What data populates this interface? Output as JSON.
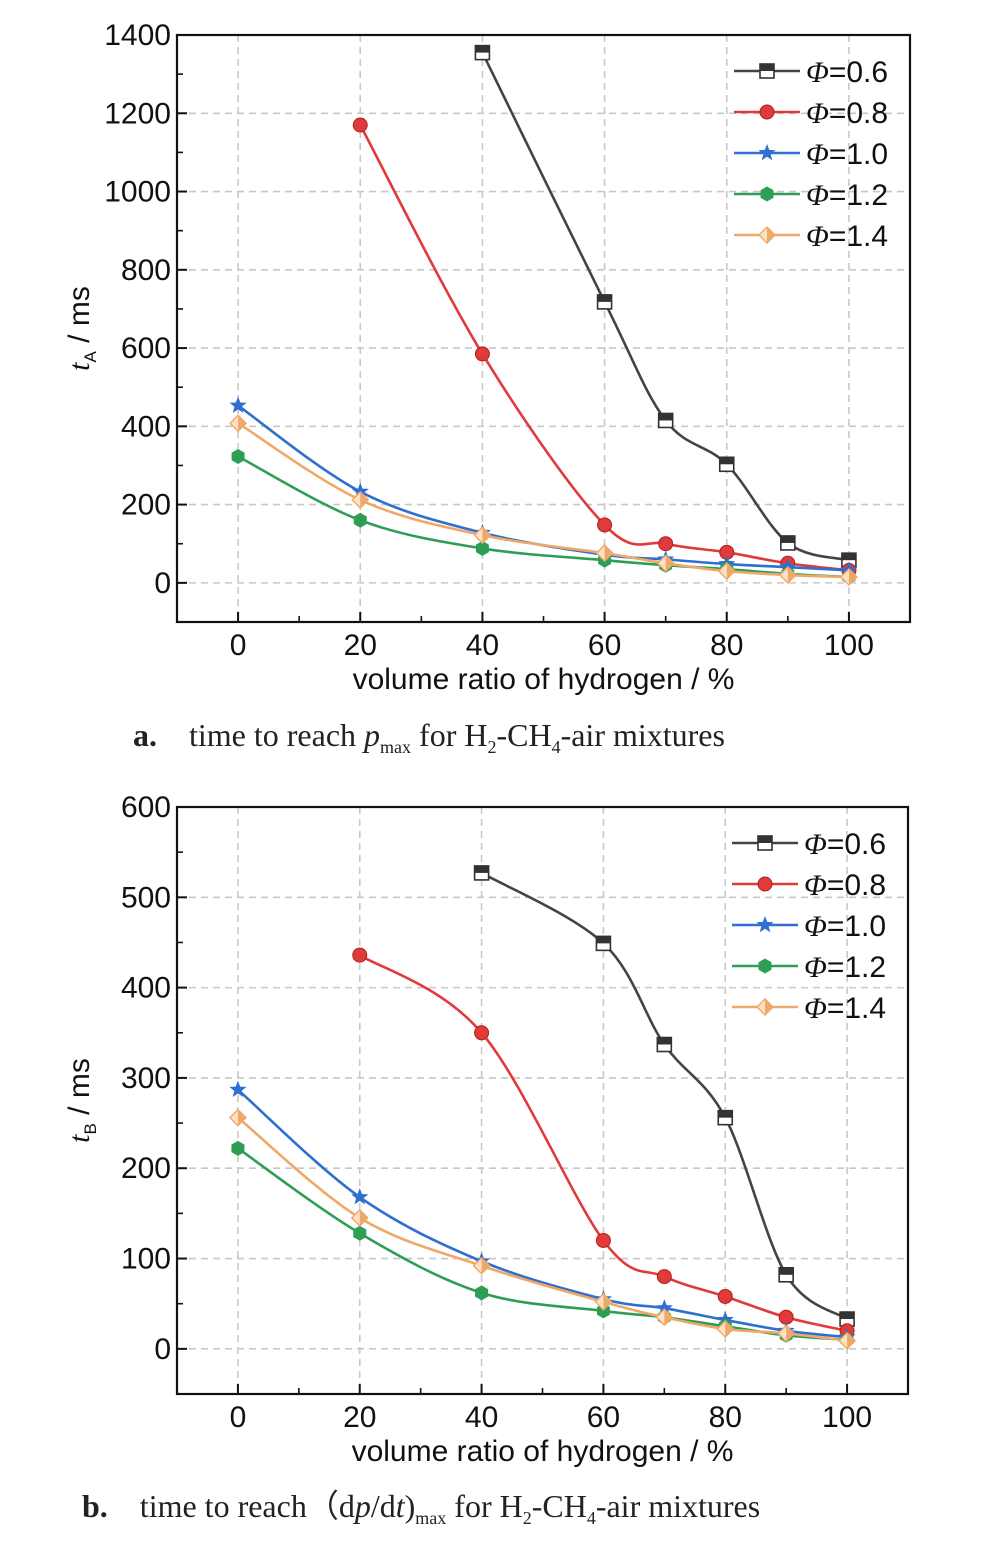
{
  "chart_data": [
    {
      "type": "line",
      "xlabel": "volume ratio of hydrogen / %",
      "ylabel": {
        "main": "t",
        "sub": "A",
        "unit": " / ms"
      },
      "xlim": [
        -10,
        110
      ],
      "ylim": [
        -100,
        1400
      ],
      "xticks": [
        0,
        20,
        40,
        60,
        80,
        100
      ],
      "yticks": [
        0,
        200,
        400,
        600,
        800,
        1000,
        1200,
        1400
      ],
      "grid": true,
      "legend_position": "top-right",
      "caption": {
        "label": "a.",
        "pre": "time to reach ",
        "var": "p",
        "sub": "max",
        "post": " for H",
        "h2": "2",
        "mid": "-CH",
        "ch4": "4",
        "end": "-air mixtures"
      },
      "series": [
        {
          "name": "Φ=0.6",
          "color": "#444444",
          "marker": "square",
          "x": [
            40,
            60,
            70,
            80,
            90,
            100
          ],
          "values": [
            1355,
            718,
            415,
            303,
            102,
            58
          ]
        },
        {
          "name": "Φ=0.8",
          "color": "#e03a3a",
          "marker": "circle",
          "x": [
            20,
            40,
            60,
            70,
            80,
            90,
            100
          ],
          "values": [
            1170,
            585,
            148,
            100,
            78,
            50,
            32
          ]
        },
        {
          "name": "Φ=1.0",
          "color": "#2f6fd0",
          "marker": "star",
          "x": [
            0,
            20,
            40,
            60,
            70,
            80,
            90,
            100
          ],
          "values": [
            453,
            233,
            128,
            72,
            60,
            48,
            40,
            32
          ]
        },
        {
          "name": "Φ=1.2",
          "color": "#2e9e55",
          "marker": "hexagon",
          "x": [
            0,
            20,
            40,
            60,
            70,
            80,
            90,
            100
          ],
          "values": [
            323,
            160,
            88,
            58,
            45,
            35,
            23,
            15
          ]
        },
        {
          "name": "Φ=1.4",
          "color": "#f0a868",
          "marker": "diamond",
          "x": [
            0,
            20,
            40,
            60,
            70,
            80,
            90,
            100
          ],
          "values": [
            408,
            212,
            122,
            76,
            50,
            30,
            20,
            15
          ]
        }
      ]
    },
    {
      "type": "line",
      "xlabel": "volume ratio of hydrogen / %",
      "ylabel": {
        "main": "t",
        "sub": "B",
        "unit": " / ms"
      },
      "xlim": [
        -10,
        110
      ],
      "ylim": [
        -50,
        600
      ],
      "xticks": [
        0,
        20,
        40,
        60,
        80,
        100
      ],
      "yticks": [
        0,
        100,
        200,
        300,
        400,
        500,
        600
      ],
      "grid": true,
      "legend_position": "top-right",
      "caption": {
        "label": "b.",
        "pre": "time to reach（d",
        "var": "p",
        "mid1": "/d",
        "var2": "t",
        "close": ")",
        "sub": "max",
        "post": " for H",
        "h2": "2",
        "mid": "-CH",
        "ch4": "4",
        "end": "-air mixtures"
      },
      "series": [
        {
          "name": "Φ=0.6",
          "color": "#444444",
          "marker": "square",
          "x": [
            40,
            60,
            70,
            80,
            90,
            100
          ],
          "values": [
            527,
            449,
            337,
            256,
            82,
            33
          ]
        },
        {
          "name": "Φ=0.8",
          "color": "#e03a3a",
          "marker": "circle",
          "x": [
            20,
            40,
            60,
            70,
            80,
            90,
            100
          ],
          "values": [
            436,
            350,
            120,
            80,
            58,
            35,
            20
          ]
        },
        {
          "name": "Φ=1.0",
          "color": "#2f6fd0",
          "marker": "star",
          "x": [
            0,
            20,
            40,
            60,
            70,
            80,
            90,
            100
          ],
          "values": [
            287,
            168,
            97,
            55,
            45,
            32,
            20,
            13
          ]
        },
        {
          "name": "Φ=1.2",
          "color": "#2e9e55",
          "marker": "hexagon",
          "x": [
            0,
            20,
            40,
            60,
            70,
            80,
            90,
            100
          ],
          "values": [
            222,
            128,
            62,
            42,
            35,
            25,
            15,
            10
          ]
        },
        {
          "name": "Φ=1.4",
          "color": "#f0a868",
          "marker": "diamond",
          "x": [
            0,
            20,
            40,
            60,
            70,
            80,
            90,
            100
          ],
          "values": [
            256,
            145,
            92,
            52,
            35,
            22,
            17,
            9
          ]
        }
      ]
    }
  ]
}
